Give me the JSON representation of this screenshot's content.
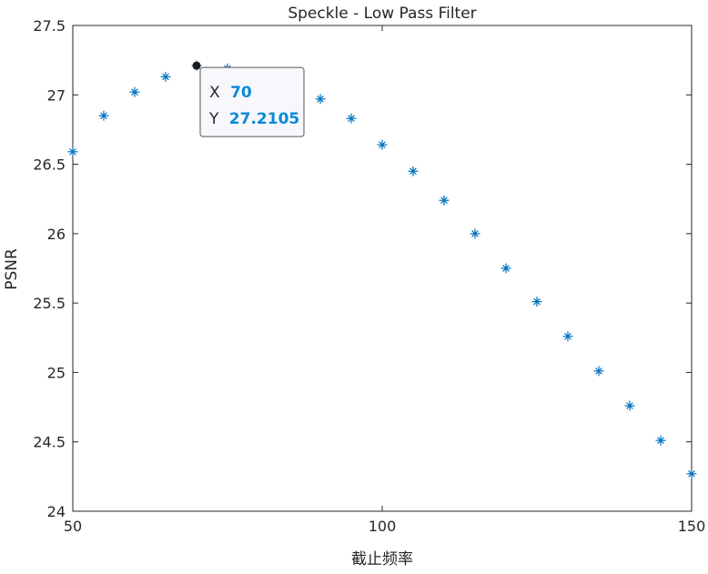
{
  "chart_data": {
    "type": "scatter",
    "title": "Speckle - Low Pass Filter",
    "xlabel": "截止频率",
    "ylabel": "PSNR",
    "xlim": [
      50,
      150
    ],
    "ylim": [
      24,
      27.5
    ],
    "xticks": [
      50,
      100,
      150
    ],
    "yticks": [
      24,
      24.5,
      25,
      25.5,
      26,
      26.5,
      27,
      27.5
    ],
    "xtick_labels": [
      "50",
      "100",
      "150"
    ],
    "ytick_labels": [
      "24",
      "24.5",
      "25",
      "25.5",
      "26",
      "26.5",
      "27",
      "27.5"
    ],
    "grid": false,
    "marker": "asterisk",
    "series": [
      {
        "color": "#0072bd",
        "x": [
          50,
          55,
          60,
          65,
          70,
          75,
          80,
          85,
          90,
          95,
          100,
          105,
          110,
          115,
          120,
          125,
          130,
          135,
          140,
          145,
          150
        ],
        "y": [
          26.59,
          26.85,
          27.02,
          27.13,
          27.2105,
          27.19,
          27.14,
          27.07,
          26.97,
          26.83,
          26.64,
          26.45,
          26.24,
          26.0,
          25.75,
          25.51,
          25.26,
          25.01,
          24.76,
          24.51,
          24.27
        ]
      }
    ],
    "datatip": {
      "point_index": 4,
      "x_label": "X",
      "x_value": "70",
      "y_label": "Y",
      "y_value": "27.2105"
    }
  }
}
